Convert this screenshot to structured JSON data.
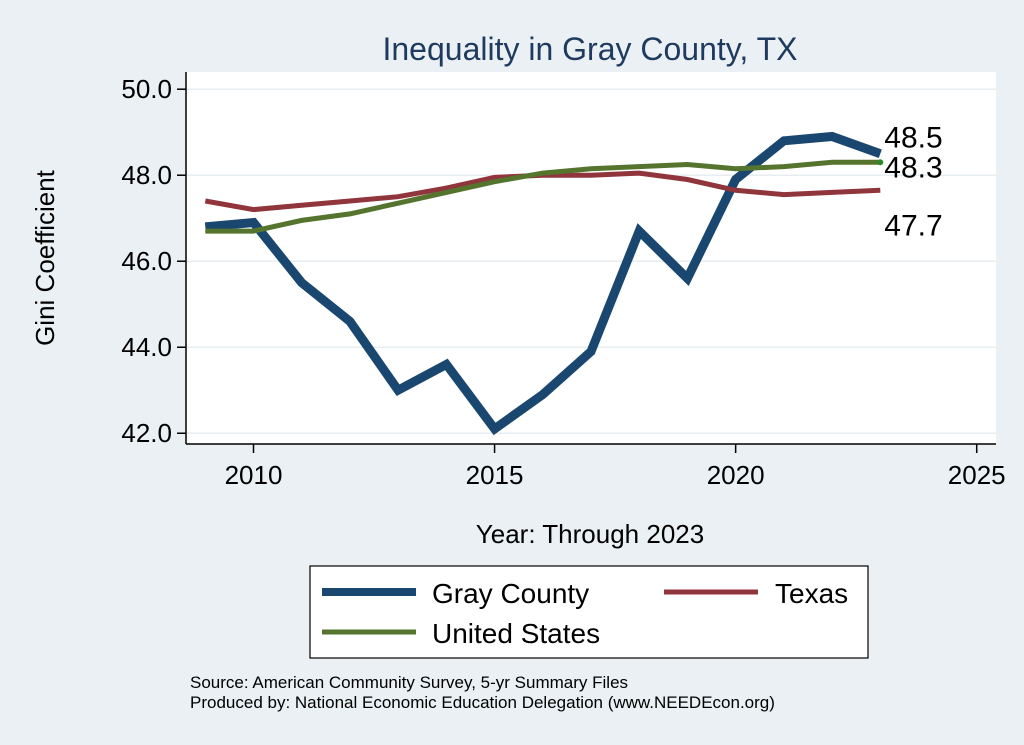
{
  "chart_data": {
    "type": "line",
    "title": "Inequality in Gray County, TX",
    "xlabel": "Year: Through 2023",
    "ylabel": "Gini Coefficient",
    "xlim": [
      2008.6,
      2025.4
    ],
    "ylim": [
      41.75,
      50.4
    ],
    "xticks": [
      2010,
      2015,
      2020,
      2025
    ],
    "yticks": [
      42.0,
      44.0,
      46.0,
      48.0,
      50.0
    ],
    "ytick_labels": [
      "42.0",
      "44.0",
      "46.0",
      "48.0",
      "50.0"
    ],
    "grid": true,
    "x": [
      2009,
      2010,
      2011,
      2012,
      2013,
      2014,
      2015,
      2016,
      2017,
      2018,
      2019,
      2020,
      2021,
      2022,
      2023
    ],
    "series": [
      {
        "name": "Gray County",
        "color": "#1a476f",
        "values": [
          46.8,
          46.9,
          45.5,
          44.6,
          43.0,
          43.6,
          42.1,
          42.9,
          43.9,
          46.7,
          45.6,
          47.9,
          48.8,
          48.9,
          48.5
        ],
        "end_label": "48.5"
      },
      {
        "name": "Texas",
        "color": "#90353b",
        "values": [
          47.4,
          47.2,
          47.3,
          47.4,
          47.5,
          47.7,
          47.95,
          48.0,
          48.0,
          48.05,
          47.9,
          47.65,
          47.55,
          47.6,
          47.65
        ],
        "end_label": "47.7"
      },
      {
        "name": "United States",
        "color": "#55752f",
        "values": [
          46.7,
          46.7,
          46.95,
          47.1,
          47.35,
          47.6,
          47.85,
          48.05,
          48.15,
          48.2,
          48.25,
          48.15,
          48.2,
          48.3,
          48.3
        ],
        "end_label": "48.3"
      }
    ],
    "legend": {
      "placement": "bottom",
      "entries": [
        "Gray County",
        "Texas",
        "United States"
      ]
    },
    "notes": [
      "Source: American Community Survey, 5-yr Summary Files",
      "Produced by: National Economic Education Delegation (www.NEEDEcon.org)"
    ]
  }
}
